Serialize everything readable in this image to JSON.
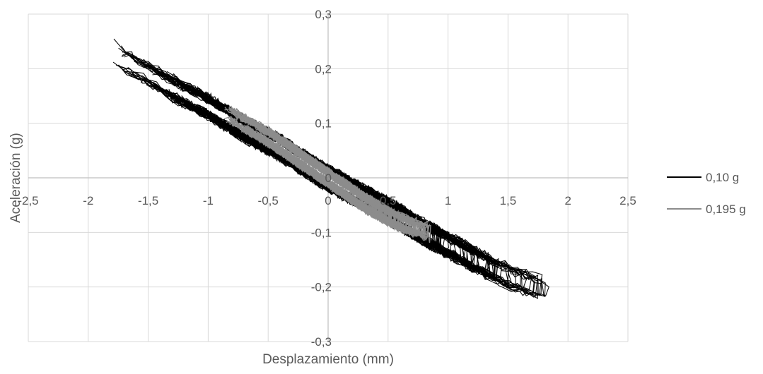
{
  "chart_data": {
    "type": "scatter",
    "title": "",
    "xlabel": "Desplazamiento (mm)",
    "ylabel": "Aceleración (g)",
    "xlim": [
      -2.5,
      2.5
    ],
    "ylim": [
      -0.3,
      0.3
    ],
    "x_ticks": [
      -2.5,
      -2,
      -1.5,
      -1,
      -0.5,
      0,
      0.5,
      1,
      1.5,
      2,
      2.5
    ],
    "x_tick_labels": [
      "-2,5",
      "-2",
      "-1,5",
      "-1",
      "-0,5",
      "0",
      "0,5",
      "1",
      "1,5",
      "2",
      "2,5"
    ],
    "y_ticks": [
      0.3,
      0.2,
      0.1,
      0,
      -0.1,
      -0.2,
      -0.3
    ],
    "y_tick_labels": [
      "0,3",
      "0,2",
      "0,1",
      "0",
      "-0,1",
      "-0,2",
      "-0,3"
    ],
    "grid": true,
    "legend_position": "right",
    "series": [
      {
        "name": "0,10 g",
        "color": "#000000",
        "description": "hysteresis loops, dense band",
        "x": [
          -1.8,
          -1.7,
          -1.5,
          -1.3,
          -1.0,
          -0.7,
          -0.4,
          -0.1,
          0.2,
          0.5,
          0.8,
          1.1,
          1.4,
          1.6,
          1.85
        ],
        "y": [
          0.23,
          0.215,
          0.19,
          0.165,
          0.13,
          0.09,
          0.055,
          0.012,
          -0.025,
          -0.06,
          -0.1,
          -0.135,
          -0.17,
          -0.19,
          -0.205
        ]
      },
      {
        "name": "0,195 g",
        "color": "#8c8c8c",
        "description": "hysteresis loops, inner band",
        "x": [
          -0.85,
          -0.7,
          -0.5,
          -0.3,
          -0.1,
          0.1,
          0.3,
          0.5,
          0.7,
          0.85
        ],
        "y": [
          0.12,
          0.1,
          0.075,
          0.045,
          0.015,
          -0.015,
          -0.045,
          -0.07,
          -0.09,
          -0.1
        ]
      }
    ]
  }
}
